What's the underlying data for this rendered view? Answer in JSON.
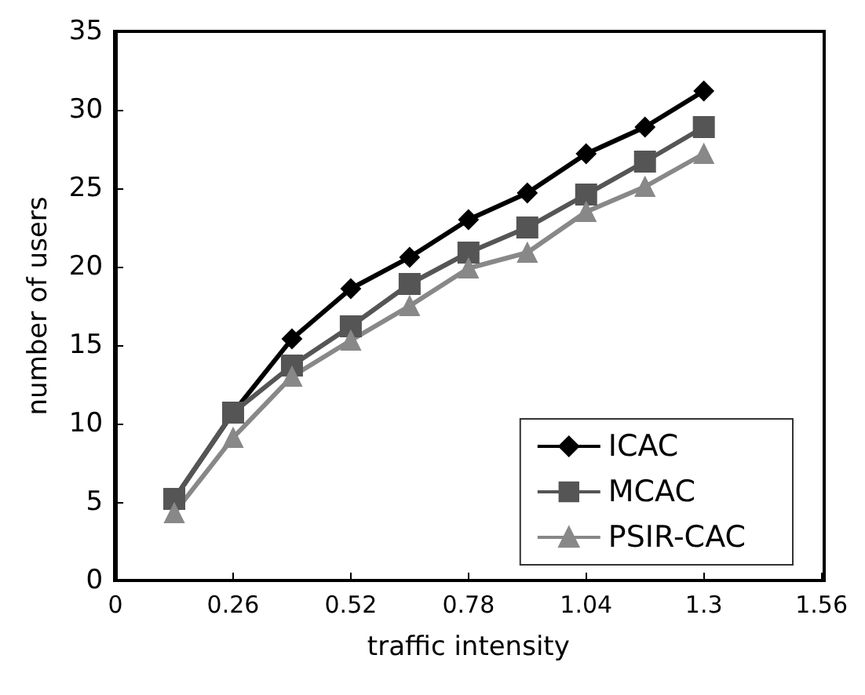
{
  "chart_data": {
    "type": "line",
    "xlabel": "traffic intensity",
    "ylabel": "number of users",
    "x": [
      0.13,
      0.26,
      0.39,
      0.52,
      0.65,
      0.78,
      0.91,
      1.04,
      1.17,
      1.3
    ],
    "series": [
      {
        "name": "ICAC",
        "color": "#000000",
        "marker": "diamond",
        "values": [
          5.2,
          10.7,
          15.4,
          18.6,
          20.6,
          23.0,
          24.7,
          27.2,
          28.9,
          31.2
        ]
      },
      {
        "name": "MCAC",
        "color": "#555555",
        "marker": "square",
        "values": [
          5.2,
          10.7,
          13.7,
          16.2,
          18.9,
          20.9,
          22.5,
          24.6,
          26.7,
          28.9
        ]
      },
      {
        "name": "PSIR-CAC",
        "color": "#888888",
        "marker": "triangle",
        "values": [
          4.3,
          9.1,
          13.0,
          15.3,
          17.5,
          19.9,
          20.9,
          23.5,
          25.1,
          27.2
        ]
      }
    ],
    "xlim": [
      0,
      1.56
    ],
    "xticks": [
      0,
      0.26,
      0.52,
      0.78,
      1.04,
      1.3,
      1.56
    ],
    "ylim": [
      0,
      35
    ],
    "yticks": [
      0,
      5,
      10,
      15,
      20,
      25,
      30,
      35
    ],
    "grid": false,
    "legend": "bottom right",
    "line_style": "solid"
  }
}
